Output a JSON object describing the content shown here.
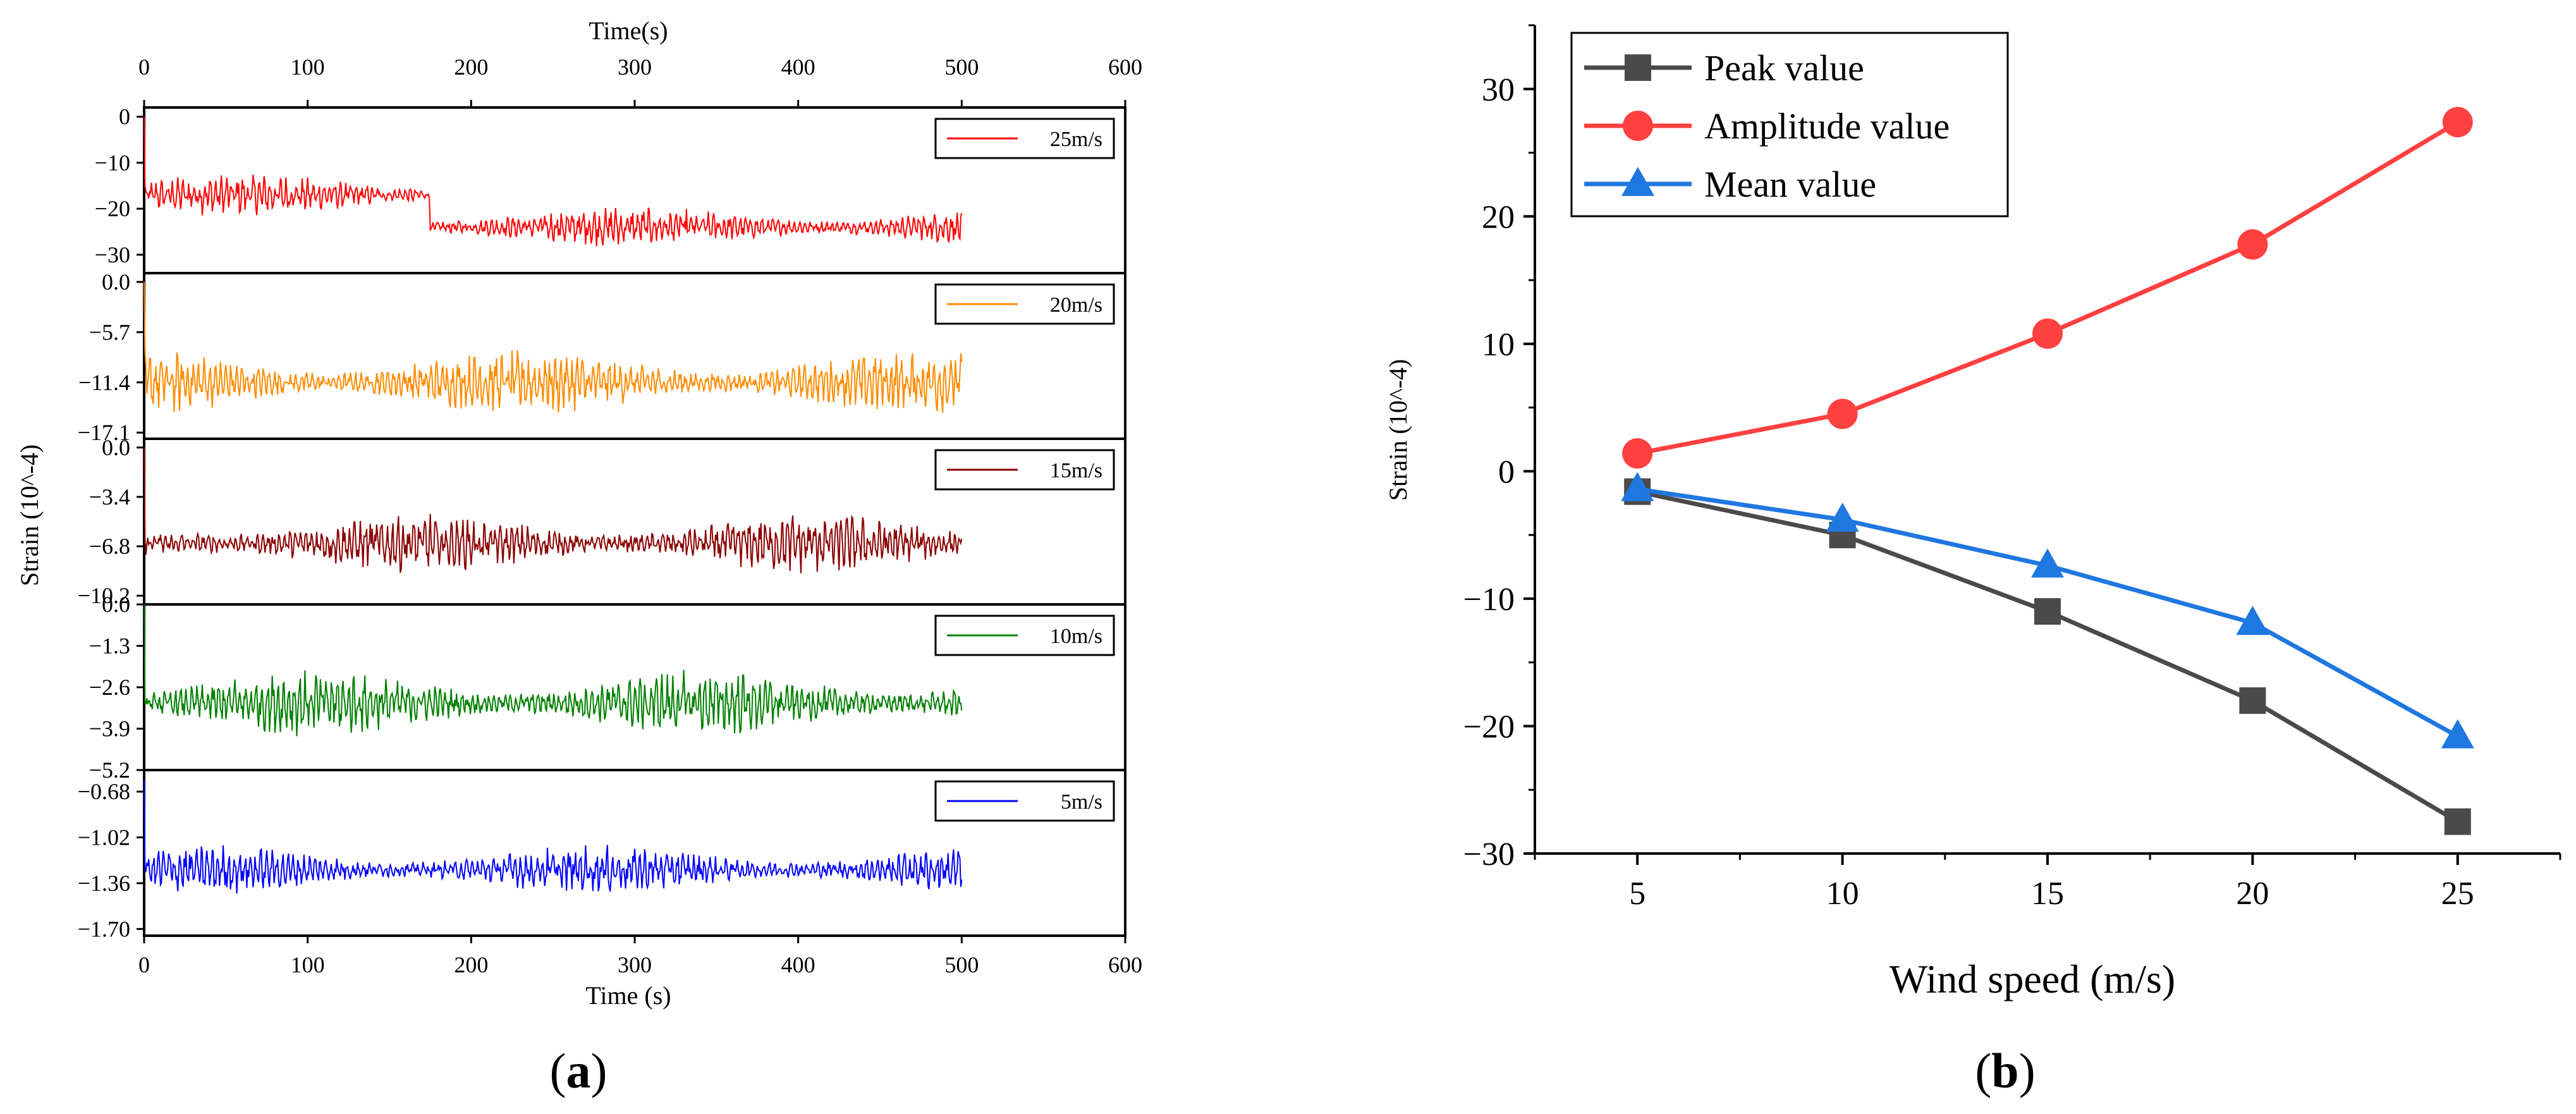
{
  "chart_data": [
    {
      "id": "a",
      "type": "line",
      "panel_label": "a",
      "title": "",
      "top_xlabel": "Time(s)",
      "xlabel": "Time (s)",
      "ylabel": "Strain (10^-4)",
      "xlim": [
        0,
        600
      ],
      "xticks": [
        0,
        100,
        200,
        300,
        400,
        500,
        600
      ],
      "time_range": [
        0,
        500
      ],
      "subplots": [
        {
          "name": "25m/s",
          "color": "#ff0000",
          "ylim": [
            -34,
            2
          ],
          "yticks": [
            0,
            -10,
            -20,
            -30
          ],
          "ytick_labels": [
            "0",
            "−10",
            "−20",
            "−30"
          ],
          "segments": [
            [
              0,
              175,
              -17
            ],
            [
              175,
              500,
              -24
            ]
          ],
          "noise": 4,
          "start": 0
        },
        {
          "name": "20m/s",
          "color": "#ff8c00",
          "ylim": [
            -17.8,
            1
          ],
          "yticks": [
            0,
            -5.7,
            -11.4,
            -17.1
          ],
          "ytick_labels": [
            "0.0",
            "−5.7",
            "−11.4",
            "−17.1"
          ],
          "segments": [
            [
              0,
              500,
              -11.4
            ]
          ],
          "noise": 3.2,
          "start": 0
        },
        {
          "name": "15m/s",
          "color": "#8b0000",
          "ylim": [
            -10.8,
            0.6
          ],
          "yticks": [
            0,
            -3.4,
            -6.8,
            -10.2
          ],
          "ytick_labels": [
            "0.0",
            "−3.4",
            "−6.8",
            "−10.2"
          ],
          "segments": [
            [
              0,
              500,
              -6.6
            ]
          ],
          "noise": 1.8,
          "start": 0
        },
        {
          "name": "10m/s",
          "color": "#008000",
          "ylim": [
            -5.2,
            0
          ],
          "yticks": [
            0,
            -1.3,
            -2.6,
            -3.9,
            -5.2
          ],
          "ytick_labels": [
            "0.0",
            "−1.3",
            "−2.6",
            "−3.9",
            "−5.2"
          ],
          "segments": [
            [
              0,
              500,
              -3.1
            ]
          ],
          "noise": 0.9,
          "start": 0
        },
        {
          "name": "5m/s",
          "color": "#0000ff",
          "ylim": [
            -1.75,
            -0.52
          ],
          "yticks": [
            -0.68,
            -1.02,
            -1.36,
            -1.7
          ],
          "ytick_labels": [
            "−0.68",
            "−1.02",
            "−1.36",
            "−1.70"
          ],
          "segments": [
            [
              0,
              500,
              -1.26
            ]
          ],
          "noise": 0.16,
          "start": -0.6
        }
      ]
    },
    {
      "id": "b",
      "type": "line",
      "panel_label": "b",
      "title": "",
      "xlabel": "Wind speed (m/s)",
      "ylabel": "Strain (10^-4)",
      "xlim": [
        2.5,
        27.5
      ],
      "ylim": [
        -30,
        35
      ],
      "xticks": [
        5,
        10,
        15,
        20,
        25
      ],
      "yticks": [
        30,
        20,
        10,
        0,
        -10,
        -20,
        -30
      ],
      "ytick_labels": [
        "30",
        "20",
        "10",
        "0",
        "−10",
        "−20",
        "−30"
      ],
      "legend_position": "top-left",
      "x": [
        5,
        10,
        15,
        20,
        25
      ],
      "series": [
        {
          "name": "Peak value",
          "color": "#4a4a4a",
          "marker": "square",
          "values": [
            -1.6,
            -5.0,
            -11.0,
            -18.0,
            -27.5
          ]
        },
        {
          "name": "Amplitude value",
          "color": "#ff4040",
          "marker": "circle",
          "values": [
            1.4,
            4.5,
            10.8,
            17.8,
            27.4
          ]
        },
        {
          "name": "Mean value",
          "color": "#1f77e0",
          "marker": "triangle",
          "values": [
            -1.4,
            -3.8,
            -7.4,
            -11.9,
            -20.8
          ]
        }
      ]
    }
  ]
}
